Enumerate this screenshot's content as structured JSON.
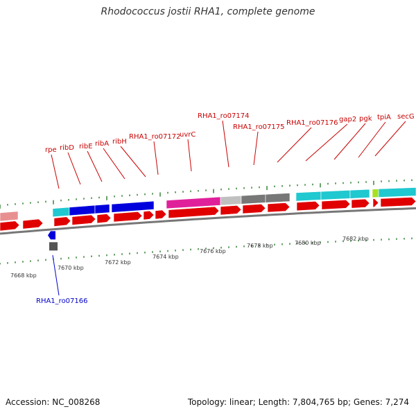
{
  "title": "Rhodococcus jostii RHA1, complete genome",
  "footer": {
    "accession": "Accession: NC_008268",
    "summary": "Topology: linear; Length: 7,804,765 bp; Genes: 7,274"
  },
  "colors": {
    "cds_red": "#e00000",
    "ribo_blue": "#0000dd",
    "cyan": "#20c8d0",
    "magenta": "#e0209a",
    "gray": "#777777",
    "light_gray": "#c0c0c0",
    "pink": "#e89090",
    "lime": "#a8e020",
    "label_red": "#c80000",
    "label_blue": "#0000c8",
    "tick_green": "#2a7a2a"
  },
  "axis_labels": [
    {
      "kbp": 7668,
      "text": "7668 kbp"
    },
    {
      "kbp": 7670,
      "text": "7670 kbp"
    },
    {
      "kbp": 7672,
      "text": "7672 kbp"
    },
    {
      "kbp": 7674,
      "text": "7674 kbp"
    },
    {
      "kbp": 7676,
      "text": "7676 kbp"
    },
    {
      "kbp": 7678,
      "text": "7678 kbp"
    },
    {
      "kbp": 7680,
      "text": "7680 kbp"
    },
    {
      "kbp": 7682,
      "text": "7682 kbp"
    }
  ],
  "gene_labels": [
    {
      "text": "rpe",
      "color": "red"
    },
    {
      "text": "ribD",
      "color": "red"
    },
    {
      "text": "ribE",
      "color": "red"
    },
    {
      "text": "ribA",
      "color": "red"
    },
    {
      "text": "ribH",
      "color": "red"
    },
    {
      "text": "RHA1_ro07172",
      "color": "red"
    },
    {
      "text": "uvrC",
      "color": "red"
    },
    {
      "text": "RHA1_ro07174",
      "color": "red"
    },
    {
      "text": "RHA1_ro07175",
      "color": "red"
    },
    {
      "text": "RHA1_ro07176",
      "color": "red"
    },
    {
      "text": "gap2",
      "color": "red"
    },
    {
      "text": "pgk",
      "color": "red"
    },
    {
      "text": "tpiA",
      "color": "red"
    },
    {
      "text": "secG",
      "color": "red"
    },
    {
      "text": "RHA1_ro07166",
      "color": "blue"
    }
  ]
}
